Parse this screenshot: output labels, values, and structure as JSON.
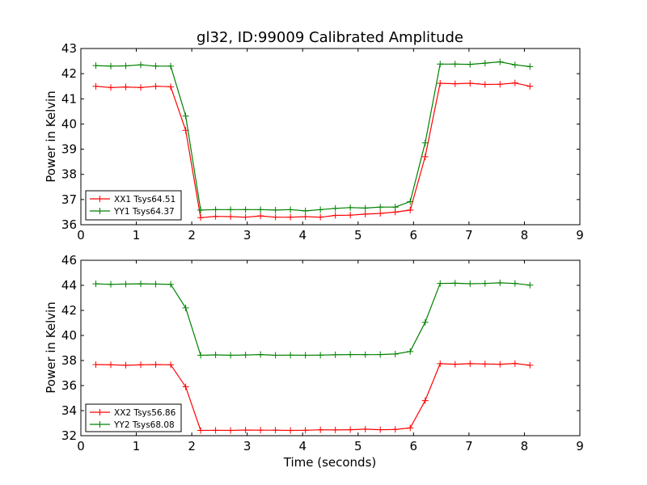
{
  "chart_data": [
    {
      "type": "line",
      "title": "gl32, ID:99009 Calibrated Amplitude",
      "xlabel": "",
      "ylabel": "Power in Kelvin",
      "xlim": [
        0,
        9
      ],
      "ylim": [
        36,
        43
      ],
      "xticks": [
        "0",
        "1",
        "2",
        "3",
        "4",
        "5",
        "6",
        "7",
        "8",
        "9"
      ],
      "yticks": [
        "36",
        "37",
        "38",
        "39",
        "40",
        "41",
        "42",
        "43"
      ],
      "legend_placement": "lower-left",
      "grid": false,
      "x": [
        0.27,
        0.54,
        0.81,
        1.08,
        1.35,
        1.62,
        1.89,
        2.16,
        2.43,
        2.7,
        2.97,
        3.24,
        3.51,
        3.78,
        4.05,
        4.32,
        4.59,
        4.86,
        5.13,
        5.4,
        5.67,
        5.94,
        6.21,
        6.48,
        6.75,
        7.02,
        7.29,
        7.56,
        7.83,
        8.1
      ],
      "series": [
        {
          "name": "XX1 Tsys64.51",
          "color": "#ff0000",
          "values": [
            41.5,
            41.45,
            41.47,
            41.45,
            41.5,
            41.48,
            39.75,
            36.28,
            36.33,
            36.32,
            36.3,
            36.35,
            36.3,
            36.3,
            36.32,
            36.3,
            36.37,
            36.38,
            36.42,
            36.45,
            36.5,
            36.58,
            38.7,
            41.62,
            41.6,
            41.62,
            41.57,
            41.58,
            41.63,
            41.5
          ]
        },
        {
          "name": "YY1 Tsys64.37",
          "color": "#008000",
          "values": [
            42.32,
            42.3,
            42.31,
            42.35,
            42.3,
            42.3,
            40.32,
            36.58,
            36.6,
            36.6,
            36.6,
            36.6,
            36.58,
            36.6,
            36.55,
            36.6,
            36.65,
            36.68,
            36.66,
            36.7,
            36.7,
            36.92,
            39.25,
            42.38,
            42.38,
            42.37,
            42.42,
            42.47,
            42.35,
            42.28
          ]
        }
      ]
    },
    {
      "type": "line",
      "title": "",
      "xlabel": "Time (seconds)",
      "ylabel": "Power in Kelvin",
      "xlim": [
        0,
        9
      ],
      "ylim": [
        32,
        46
      ],
      "xticks": [
        "0",
        "1",
        "2",
        "3",
        "4",
        "5",
        "6",
        "7",
        "8",
        "9"
      ],
      "yticks": [
        "32",
        "34",
        "36",
        "38",
        "40",
        "42",
        "44",
        "46"
      ],
      "legend_placement": "lower-left",
      "grid": false,
      "x": [
        0.27,
        0.54,
        0.81,
        1.08,
        1.35,
        1.62,
        1.89,
        2.16,
        2.43,
        2.7,
        2.97,
        3.24,
        3.51,
        3.78,
        4.05,
        4.32,
        4.59,
        4.86,
        5.13,
        5.4,
        5.67,
        5.94,
        6.21,
        6.48,
        6.75,
        7.02,
        7.29,
        7.56,
        7.83,
        8.1
      ],
      "series": [
        {
          "name": "XX2 Tsys56.86",
          "color": "#ff0000",
          "values": [
            37.68,
            37.66,
            37.62,
            37.66,
            37.68,
            37.66,
            35.9,
            32.42,
            32.43,
            32.42,
            32.45,
            32.44,
            32.44,
            32.42,
            32.43,
            32.47,
            32.46,
            32.48,
            32.52,
            32.48,
            32.5,
            32.62,
            34.8,
            37.75,
            37.7,
            37.75,
            37.72,
            37.7,
            37.76,
            37.62
          ]
        },
        {
          "name": "YY2 Tsys68.08",
          "color": "#008000",
          "values": [
            44.12,
            44.08,
            44.1,
            44.12,
            44.1,
            44.08,
            42.2,
            38.42,
            38.45,
            38.42,
            38.44,
            38.48,
            38.42,
            38.43,
            38.42,
            38.43,
            38.46,
            38.48,
            38.47,
            38.48,
            38.52,
            38.72,
            41.05,
            44.15,
            44.17,
            44.13,
            44.15,
            44.2,
            44.15,
            44.02
          ]
        }
      ]
    }
  ]
}
